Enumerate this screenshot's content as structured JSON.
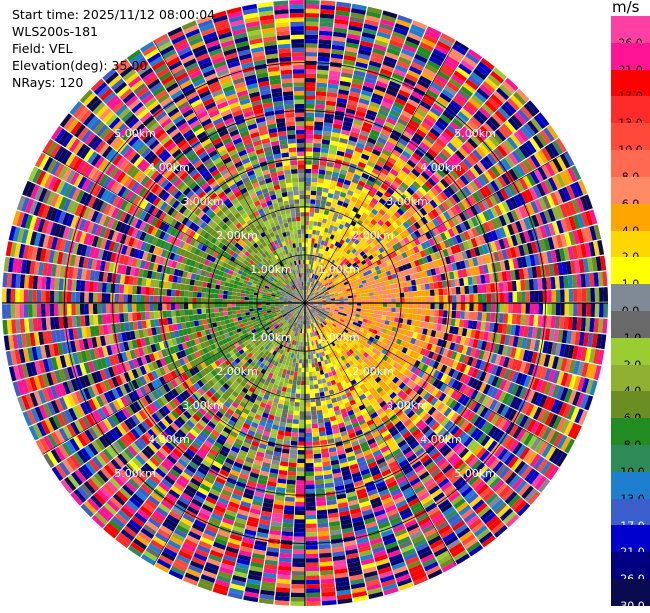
{
  "header": {
    "start_time": "Start time: 2025/11/12 08:00:04",
    "instrument": "WLS200s-181",
    "field": "Field: VEL",
    "elevation": "Elevation(deg): 35.00",
    "nrays": "NRays: 120"
  },
  "colorbar": {
    "unit": "m/s",
    "bins": [
      {
        "label": "26.0",
        "color": "#ff3fa4"
      },
      {
        "label": "21.0",
        "color": "#ff1493"
      },
      {
        "label": "17.0",
        "color": "#ff0000"
      },
      {
        "label": "13.0",
        "color": "#ff2a2a"
      },
      {
        "label": "10.0",
        "color": "#ff4a3a"
      },
      {
        "label": "8.0",
        "color": "#ff6a50"
      },
      {
        "label": "6.0",
        "color": "#ff8a64"
      },
      {
        "label": "4.0",
        "color": "#ffa500"
      },
      {
        "label": "2.0",
        "color": "#ffd700"
      },
      {
        "label": "1.0",
        "color": "#ffff00"
      },
      {
        "label": "0.0",
        "color": "#808a95"
      },
      {
        "label": "-1.0",
        "color": "#696969"
      },
      {
        "label": "-2.0",
        "color": "#9acd32"
      },
      {
        "label": "-4.0",
        "color": "#8fb030"
      },
      {
        "label": "-6.0",
        "color": "#6b8e23"
      },
      {
        "label": "-8.0",
        "color": "#228b22"
      },
      {
        "label": "-10.0",
        "color": "#2e8b57"
      },
      {
        "label": "-13.0",
        "color": "#1e7fd0"
      },
      {
        "label": "-17.0",
        "color": "#3a5fcd"
      },
      {
        "label": "-21.0",
        "color": "#0000cd"
      },
      {
        "label": "-26.0",
        "color": "#000080"
      },
      {
        "label": "-30.0",
        "color": "#0a0a50"
      }
    ]
  },
  "chart_data": {
    "type": "heatmap",
    "projection": "polar (PPI)",
    "field": "VEL",
    "elevation_deg": 35.0,
    "n_rays": 120,
    "range_rings_km": [
      1.0,
      2.0,
      3.0,
      4.0,
      5.0
    ],
    "ring_labels": [
      "1.00km",
      "2.00km",
      "3.00km",
      "4.00km",
      "5.00km"
    ],
    "max_range_km": 6.3,
    "value_range_ms": [
      -30.0,
      26.0
    ],
    "pattern_summary": {
      "near_field_east": "positive (yellow to red, ~1 to 10 m/s)",
      "near_field_west": "negative (green to blue, ~-2 to -13 m/s)",
      "far_field": "noisy, all colors"
    }
  }
}
